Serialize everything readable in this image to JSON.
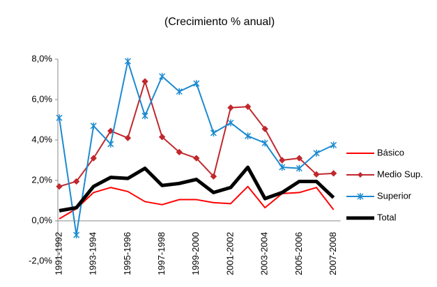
{
  "chart_data": {
    "type": "line",
    "title": "(Crecimiento % anual)",
    "categories": [
      "1991-1992",
      null,
      "1993-1994",
      null,
      "1995-1996",
      null,
      "1997-1998",
      null,
      "1999-2000",
      null,
      "2001-2002",
      null,
      "2003-2004",
      null,
      "2005-2006",
      null,
      "2007-2008"
    ],
    "series": [
      {
        "name": "Básico",
        "color": "#ff0000",
        "marker": "none",
        "values": [
          0.1,
          0.6,
          1.4,
          1.65,
          1.45,
          0.95,
          0.8,
          1.05,
          1.05,
          0.9,
          0.85,
          1.7,
          0.65,
          1.35,
          1.4,
          1.65,
          0.55
        ]
      },
      {
        "name": "Medio Sup.",
        "color": "#c0282d",
        "marker": "diamond",
        "values": [
          1.7,
          1.95,
          3.1,
          4.45,
          4.1,
          6.9,
          4.15,
          3.4,
          3.1,
          2.2,
          5.6,
          5.65,
          4.55,
          3.0,
          3.1,
          2.3,
          2.35
        ]
      },
      {
        "name": "Superior",
        "color": "#1b8ad1",
        "marker": "star",
        "values": [
          5.1,
          -0.7,
          4.7,
          3.8,
          7.9,
          5.2,
          7.15,
          6.4,
          6.8,
          4.35,
          4.85,
          4.2,
          3.85,
          2.65,
          2.6,
          3.35,
          3.75
        ]
      },
      {
        "name": "Total",
        "color": "#000000",
        "marker": "none",
        "width": 5,
        "values": [
          0.5,
          0.65,
          1.7,
          2.15,
          2.1,
          2.6,
          1.75,
          1.85,
          2.05,
          1.4,
          1.65,
          2.65,
          1.1,
          1.4,
          1.95,
          1.95,
          1.15
        ]
      }
    ],
    "ylim": [
      -2,
      8
    ],
    "yticks": [
      {
        "value": -2,
        "label": "-2,0%"
      },
      {
        "value": 0,
        "label": "0,0%"
      },
      {
        "value": 2,
        "label": "2,0%"
      },
      {
        "value": 4,
        "label": "4,0%"
      },
      {
        "value": 6,
        "label": "6,0%"
      },
      {
        "value": 8,
        "label": "8,0%"
      }
    ],
    "legend": "right"
  }
}
